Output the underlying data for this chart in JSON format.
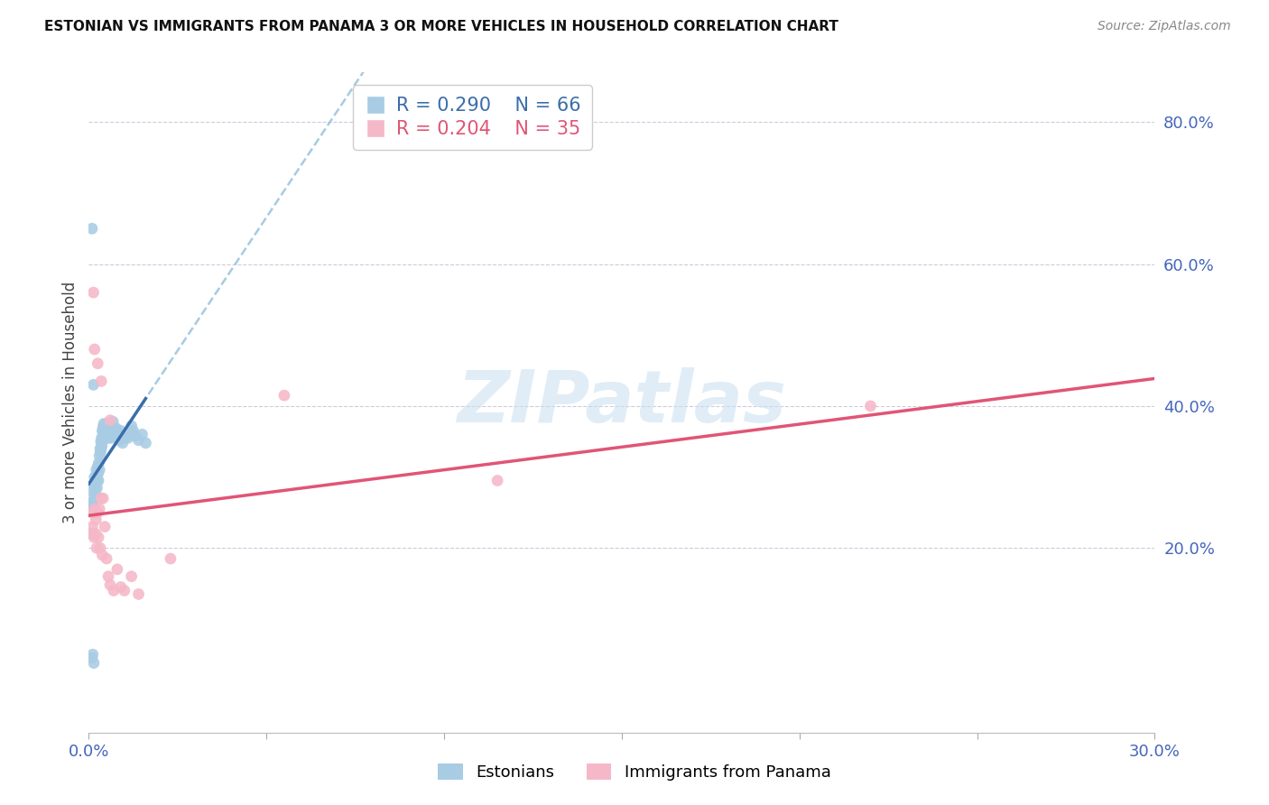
{
  "title": "ESTONIAN VS IMMIGRANTS FROM PANAMA 3 OR MORE VEHICLES IN HOUSEHOLD CORRELATION CHART",
  "source": "Source: ZipAtlas.com",
  "ylabel": "3 or more Vehicles in Household",
  "xlim": [
    0.0,
    0.3
  ],
  "ylim": [
    -0.06,
    0.87
  ],
  "x_ticks": [
    0.0,
    0.05,
    0.1,
    0.15,
    0.2,
    0.25,
    0.3
  ],
  "x_tick_labels": [
    "0.0%",
    "",
    "",
    "",
    "",
    "",
    "30.0%"
  ],
  "y_ticks_right": [
    0.2,
    0.4,
    0.6,
    0.8
  ],
  "y_tick_labels_right": [
    "20.0%",
    "40.0%",
    "60.0%",
    "80.0%"
  ],
  "blue_color": "#a8cce4",
  "pink_color": "#f5b8c8",
  "trend_blue_solid": "#3a6eaa",
  "trend_blue_dashed": "#90bedd",
  "trend_pink": "#e05575",
  "watermark_text": "ZIPatlas",
  "r_est": 0.29,
  "n_est": 66,
  "r_pan": 0.204,
  "n_pan": 35,
  "est_x": [
    0.0008,
    0.001,
    0.0012,
    0.0013,
    0.0015,
    0.0015,
    0.0016,
    0.0018,
    0.002,
    0.002,
    0.0021,
    0.0022,
    0.0023,
    0.0024,
    0.0025,
    0.0026,
    0.0027,
    0.0028,
    0.003,
    0.003,
    0.0032,
    0.0033,
    0.0034,
    0.0035,
    0.0036,
    0.0037,
    0.0038,
    0.004,
    0.0041,
    0.0042,
    0.0043,
    0.0045,
    0.0046,
    0.0048,
    0.005,
    0.0052,
    0.0054,
    0.0055,
    0.0057,
    0.006,
    0.0062,
    0.0065,
    0.0068,
    0.007,
    0.0072,
    0.0075,
    0.0078,
    0.008,
    0.0085,
    0.009,
    0.0095,
    0.01,
    0.0105,
    0.011,
    0.012,
    0.0125,
    0.013,
    0.014,
    0.015,
    0.016,
    0.0009,
    0.0011,
    0.0014,
    0.0009,
    0.0013,
    0.0008
  ],
  "est_y": [
    0.26,
    0.28,
    0.265,
    0.255,
    0.29,
    0.27,
    0.3,
    0.285,
    0.275,
    0.295,
    0.31,
    0.3,
    0.285,
    0.295,
    0.315,
    0.305,
    0.295,
    0.32,
    0.33,
    0.31,
    0.34,
    0.335,
    0.35,
    0.34,
    0.355,
    0.345,
    0.365,
    0.37,
    0.36,
    0.375,
    0.355,
    0.368,
    0.372,
    0.36,
    0.375,
    0.37,
    0.355,
    0.368,
    0.362,
    0.37,
    0.355,
    0.36,
    0.378,
    0.365,
    0.37,
    0.358,
    0.368,
    0.36,
    0.352,
    0.365,
    0.348,
    0.355,
    0.36,
    0.355,
    0.372,
    0.365,
    0.358,
    0.352,
    0.36,
    0.348,
    0.045,
    0.05,
    0.038,
    0.65,
    0.43,
    0.22
  ],
  "pan_x": [
    0.0008,
    0.001,
    0.0012,
    0.0014,
    0.0015,
    0.0017,
    0.0019,
    0.002,
    0.0022,
    0.0025,
    0.0027,
    0.003,
    0.0032,
    0.0035,
    0.0038,
    0.004,
    0.0045,
    0.005,
    0.0055,
    0.006,
    0.007,
    0.008,
    0.009,
    0.01,
    0.012,
    0.014,
    0.023,
    0.055,
    0.115,
    0.22,
    0.0013,
    0.0016,
    0.0025,
    0.0035,
    0.006
  ],
  "pan_y": [
    0.25,
    0.23,
    0.22,
    0.25,
    0.215,
    0.255,
    0.22,
    0.24,
    0.2,
    0.25,
    0.215,
    0.255,
    0.2,
    0.27,
    0.19,
    0.27,
    0.23,
    0.185,
    0.16,
    0.148,
    0.14,
    0.17,
    0.145,
    0.14,
    0.16,
    0.135,
    0.185,
    0.415,
    0.295,
    0.4,
    0.56,
    0.48,
    0.46,
    0.435,
    0.38
  ],
  "blue_trend_intercept": 0.248,
  "blue_trend_slope": 1.62,
  "pink_trend_intercept": 0.218,
  "pink_trend_slope": 0.58
}
